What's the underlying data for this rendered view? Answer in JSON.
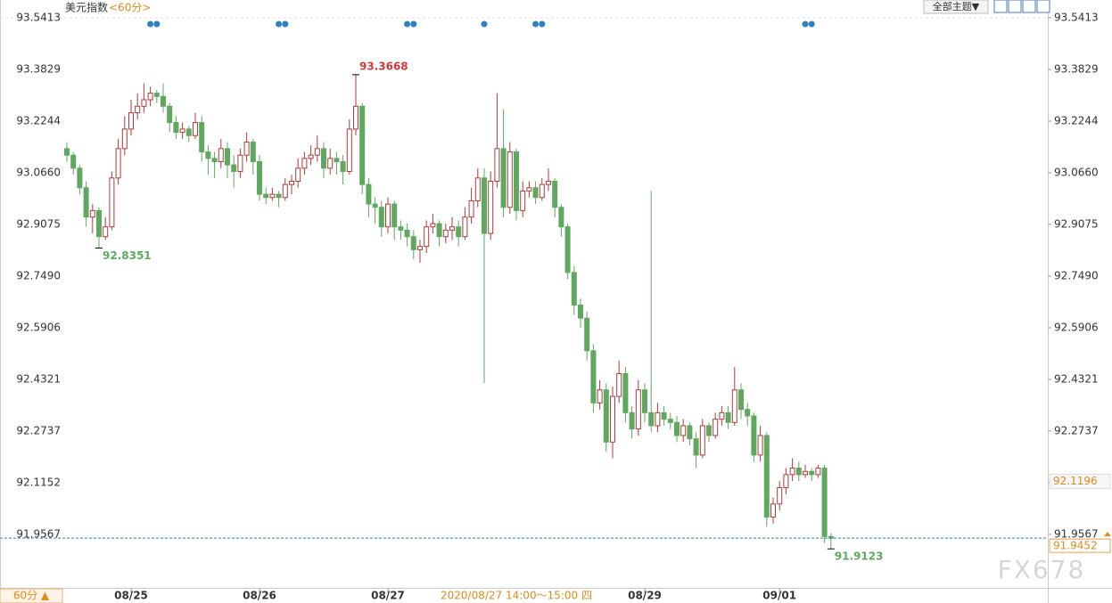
{
  "chart_data": {
    "type": "candlestick",
    "ui": {
      "title": "美元指数",
      "period": "<60分>",
      "theme_button": "全部主题▼",
      "period_button": "60分 ▲",
      "watermark": "FX678"
    },
    "up_color": "#b03a3a",
    "down_color": "#5fa85f",
    "ylim": [
      91.7927,
      93.5959
    ],
    "yticks": [
      93.5413,
      93.3829,
      93.2244,
      {
        "value": 93.066,
        "label": "93.0660"
      },
      92.9075,
      {
        "value": 92.749,
        "label": "92.7490"
      },
      92.5906,
      92.4321,
      92.2737,
      92.1152,
      91.9567
    ],
    "categories": [
      null,
      null,
      null,
      null,
      null,
      null,
      null,
      null,
      null,
      null,
      "08/25",
      null,
      null,
      null,
      null,
      null,
      null,
      null,
      null,
      null,
      null,
      null,
      null,
      null,
      null,
      null,
      null,
      null,
      null,
      null,
      "08/26",
      null,
      null,
      null,
      null,
      null,
      null,
      null,
      null,
      null,
      null,
      null,
      null,
      null,
      null,
      null,
      null,
      null,
      null,
      null,
      "08/27",
      null,
      null,
      null,
      null,
      null,
      null,
      null,
      null,
      null,
      null,
      null,
      null,
      null,
      null,
      null,
      null,
      null,
      null,
      null,
      null,
      null,
      null,
      null,
      null,
      null,
      null,
      null,
      null,
      null,
      null,
      null,
      null,
      null,
      null,
      null,
      null,
      null,
      null,
      null,
      "08/29",
      null,
      null,
      null,
      null,
      null,
      null,
      null,
      null,
      null,
      null,
      null,
      null,
      null,
      null,
      null,
      null,
      null,
      null,
      null,
      null,
      "09/01",
      null,
      null,
      null,
      null,
      null,
      null,
      null
    ],
    "ohlc": [
      [
        93.14,
        93.16,
        93.1,
        93.12
      ],
      [
        93.12,
        93.13,
        93.06,
        93.08
      ],
      [
        93.08,
        93.09,
        93.0,
        93.02
      ],
      [
        93.02,
        93.04,
        92.9,
        92.93
      ],
      [
        92.93,
        92.97,
        92.88,
        92.95
      ],
      [
        92.95,
        92.96,
        92.8351,
        92.87
      ],
      [
        92.87,
        92.93,
        92.86,
        92.9
      ],
      [
        92.9,
        93.07,
        92.89,
        93.05
      ],
      [
        93.05,
        93.17,
        93.03,
        93.14
      ],
      [
        93.14,
        93.24,
        93.12,
        93.2
      ],
      [
        93.2,
        93.29,
        93.18,
        93.25
      ],
      [
        93.25,
        93.31,
        93.23,
        93.27
      ],
      [
        93.27,
        93.34,
        93.25,
        93.29
      ],
      [
        93.29,
        93.33,
        93.27,
        93.31
      ],
      [
        93.31,
        93.32,
        93.28,
        93.3
      ],
      [
        93.3,
        93.34,
        93.25,
        93.27
      ],
      [
        93.27,
        93.28,
        93.19,
        93.22
      ],
      [
        93.22,
        93.24,
        93.17,
        93.19
      ],
      [
        93.19,
        93.22,
        93.17,
        93.2
      ],
      [
        93.2,
        93.21,
        93.16,
        93.18
      ],
      [
        93.18,
        93.25,
        93.17,
        93.22
      ],
      [
        93.22,
        93.24,
        93.1,
        93.13
      ],
      [
        93.13,
        93.15,
        93.06,
        93.11
      ],
      [
        93.11,
        93.13,
        93.05,
        93.1
      ],
      [
        93.1,
        93.17,
        93.08,
        93.14
      ],
      [
        93.14,
        93.16,
        93.05,
        93.09
      ],
      [
        93.09,
        93.12,
        93.02,
        93.07
      ],
      [
        93.07,
        93.14,
        93.05,
        93.12
      ],
      [
        93.12,
        93.19,
        93.1,
        93.16
      ],
      [
        93.16,
        93.17,
        93.06,
        93.1
      ],
      [
        93.1,
        93.12,
        92.98,
        93.0
      ],
      [
        93.0,
        93.02,
        92.97,
        92.99
      ],
      [
        92.99,
        93.02,
        92.98,
        93.0
      ],
      [
        93.0,
        93.01,
        92.96,
        92.99
      ],
      [
        92.99,
        93.05,
        92.98,
        93.03
      ],
      [
        93.03,
        93.06,
        93.0,
        93.04
      ],
      [
        93.04,
        93.11,
        93.02,
        93.08
      ],
      [
        93.08,
        93.13,
        93.06,
        93.11
      ],
      [
        93.11,
        93.15,
        93.09,
        93.12
      ],
      [
        93.12,
        93.18,
        93.1,
        93.14
      ],
      [
        93.14,
        93.16,
        93.05,
        93.08
      ],
      [
        93.08,
        93.14,
        93.06,
        93.11
      ],
      [
        93.11,
        93.13,
        93.06,
        93.1
      ],
      [
        93.1,
        93.12,
        93.03,
        93.07
      ],
      [
        93.07,
        93.23,
        93.06,
        93.2
      ],
      [
        93.2,
        93.3668,
        93.18,
        93.27
      ],
      [
        93.27,
        93.28,
        93.0,
        93.03
      ],
      [
        93.03,
        93.05,
        92.93,
        92.97
      ],
      [
        92.97,
        92.99,
        92.91,
        92.96
      ],
      [
        92.96,
        92.98,
        92.87,
        92.9
      ],
      [
        92.9,
        92.99,
        92.88,
        92.97
      ],
      [
        92.97,
        92.98,
        92.86,
        92.9
      ],
      [
        92.9,
        92.92,
        92.86,
        92.89
      ],
      [
        92.89,
        92.91,
        92.84,
        92.87
      ],
      [
        92.87,
        92.89,
        92.8,
        92.83
      ],
      [
        92.83,
        92.86,
        92.79,
        92.84
      ],
      [
        92.84,
        92.92,
        92.82,
        92.9
      ],
      [
        92.9,
        92.94,
        92.88,
        92.91
      ],
      [
        92.91,
        92.92,
        92.84,
        92.87
      ],
      [
        92.87,
        92.91,
        92.85,
        92.89
      ],
      [
        92.89,
        92.93,
        92.86,
        92.9
      ],
      [
        92.9,
        92.92,
        92.84,
        92.87
      ],
      [
        92.87,
        92.96,
        92.86,
        92.93
      ],
      [
        92.93,
        93.02,
        92.91,
        92.98
      ],
      [
        92.98,
        93.08,
        92.96,
        93.05
      ],
      [
        93.05,
        93.08,
        92.42,
        92.88
      ],
      [
        92.88,
        93.07,
        92.86,
        93.04
      ],
      [
        93.04,
        93.31,
        93.02,
        93.14
      ],
      [
        93.14,
        93.26,
        92.93,
        92.96
      ],
      [
        92.96,
        93.16,
        92.94,
        93.13
      ],
      [
        93.13,
        93.14,
        92.92,
        92.95
      ],
      [
        92.95,
        93.04,
        92.93,
        93.01
      ],
      [
        93.01,
        93.04,
        92.99,
        93.02
      ],
      [
        93.02,
        93.04,
        92.97,
        92.99
      ],
      [
        92.99,
        93.05,
        92.98,
        93.03
      ],
      [
        93.03,
        93.08,
        93.01,
        93.04
      ],
      [
        93.04,
        93.05,
        92.93,
        92.96
      ],
      [
        92.96,
        92.97,
        92.87,
        92.9
      ],
      [
        92.9,
        92.91,
        92.74,
        92.76
      ],
      [
        92.76,
        92.78,
        92.63,
        92.66
      ],
      [
        92.66,
        92.68,
        92.59,
        92.62
      ],
      [
        92.62,
        92.64,
        92.49,
        92.52
      ],
      [
        92.52,
        92.54,
        92.33,
        92.36
      ],
      [
        92.36,
        92.43,
        92.34,
        92.4
      ],
      [
        92.4,
        92.42,
        92.21,
        92.24
      ],
      [
        92.24,
        92.41,
        92.19,
        92.38
      ],
      [
        92.38,
        92.49,
        92.36,
        92.45
      ],
      [
        92.45,
        92.47,
        92.3,
        92.33
      ],
      [
        92.33,
        92.35,
        92.25,
        92.28
      ],
      [
        92.28,
        92.43,
        92.26,
        92.4
      ],
      [
        92.4,
        92.42,
        92.3,
        92.33
      ],
      [
        92.33,
        93.01,
        92.27,
        92.29
      ],
      [
        92.29,
        92.36,
        92.27,
        92.33
      ],
      [
        92.33,
        92.35,
        92.29,
        92.31
      ],
      [
        92.31,
        92.33,
        92.28,
        92.3
      ],
      [
        92.3,
        92.32,
        92.24,
        92.26
      ],
      [
        92.26,
        92.31,
        92.24,
        92.29
      ],
      [
        92.29,
        92.3,
        92.23,
        92.25
      ],
      [
        92.25,
        92.27,
        92.16,
        92.2
      ],
      [
        92.2,
        92.31,
        92.19,
        92.29
      ],
      [
        92.29,
        92.3,
        92.24,
        92.26
      ],
      [
        92.26,
        92.33,
        92.25,
        92.31
      ],
      [
        92.31,
        92.35,
        92.29,
        92.33
      ],
      [
        92.33,
        92.35,
        92.28,
        92.3
      ],
      [
        92.3,
        92.47,
        92.29,
        92.4
      ],
      [
        92.4,
        92.42,
        92.31,
        92.34
      ],
      [
        92.34,
        92.36,
        92.29,
        92.32
      ],
      [
        92.32,
        92.33,
        92.18,
        92.2
      ],
      [
        92.2,
        92.29,
        92.18,
        92.26
      ],
      [
        92.26,
        92.27,
        91.98,
        92.01
      ],
      [
        92.01,
        92.07,
        91.99,
        92.05
      ],
      [
        92.05,
        92.12,
        92.03,
        92.1
      ],
      [
        92.1,
        92.16,
        92.08,
        92.14
      ],
      [
        92.14,
        92.19,
        92.12,
        92.16
      ],
      [
        92.16,
        92.18,
        92.12,
        92.14
      ],
      [
        92.14,
        92.17,
        92.13,
        92.15
      ],
      [
        92.15,
        92.16,
        92.12,
        92.14
      ],
      [
        92.14,
        92.17,
        92.13,
        92.16
      ],
      [
        92.16,
        92.17,
        91.93,
        91.95
      ],
      [
        91.95,
        91.96,
        91.9123,
        91.9452
      ]
    ],
    "annotations": [
      {
        "candle": 45,
        "value": 93.3668,
        "color": "#d03a3a",
        "side": "high"
      },
      {
        "candle": 5,
        "value": 92.8351,
        "color": "#5fa85f",
        "side": "low"
      },
      {
        "candle": 119,
        "value": 91.9123,
        "color": "#5fa85f",
        "side": "low"
      }
    ],
    "events": [
      13,
      14,
      33,
      34,
      53,
      54,
      65,
      73,
      74,
      115,
      116
    ],
    "event_color": "#2f7fc8",
    "last_price": 91.9452,
    "cursor_price": 92.1196,
    "cursor_time": {
      "candle": 70,
      "label": "2020/08/27 14:00～15:00 四"
    }
  }
}
